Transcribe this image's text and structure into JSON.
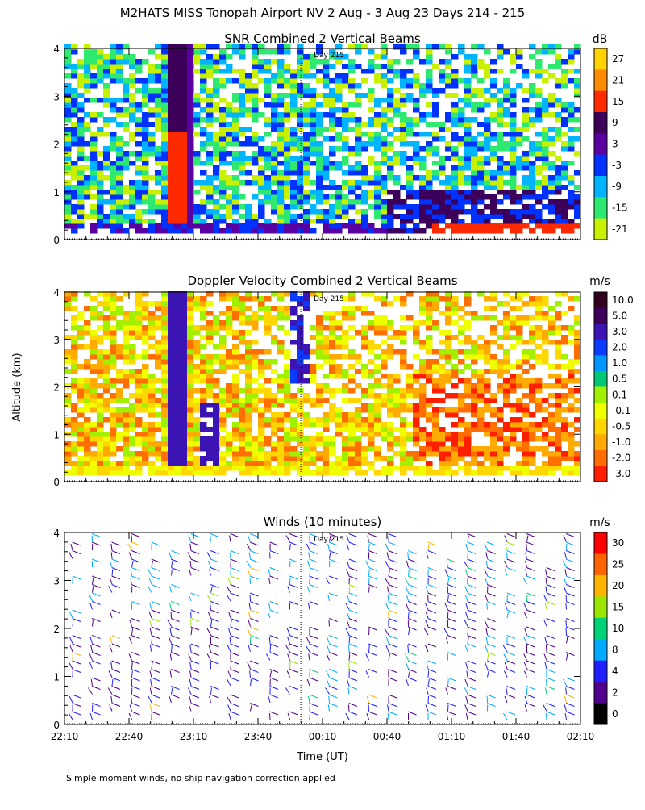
{
  "figure": {
    "title": "M2HATS MISS Tonopah Airport NV   2 Aug -  3 Aug 23 Days 214 - 215",
    "ylabel": "Altitude (km)",
    "xlabel": "Time (UT)",
    "footnote": "Simple moment winds, no ship navigation correction applied",
    "day_marker_label": "Day 215",
    "x_ticks": [
      "22:10",
      "22:40",
      "23:10",
      "23:40",
      "00:10",
      "00:40",
      "01:10",
      "01:40",
      "02:10"
    ]
  },
  "chart_data": [
    {
      "type": "heatmap",
      "title": "SNR Combined 2 Vertical Beams",
      "ylim": [
        0,
        4
      ],
      "y_ticks": [
        "0",
        "1",
        "2",
        "3",
        "4"
      ],
      "x_ticks": [
        "22:10",
        "22:40",
        "23:10",
        "23:40",
        "00:10",
        "00:40",
        "01:10",
        "01:40",
        "02:10"
      ],
      "colorbar": {
        "unit": "dB",
        "labels": [
          "27",
          "21",
          "15",
          "9",
          "3",
          "-3",
          "-9",
          "-15",
          "-21"
        ],
        "colors": [
          "#ffd200",
          "#ff8c00",
          "#ff2a00",
          "#3c005a",
          "#5a00a0",
          "#0032ff",
          "#00b4ff",
          "#2ee870",
          "#c8f000"
        ]
      }
    },
    {
      "type": "heatmap",
      "title": "Doppler Velocity Combined 2 Vertical Beams",
      "ylim": [
        0,
        4
      ],
      "y_ticks": [
        "0",
        "1",
        "2",
        "3",
        "4"
      ],
      "x_ticks": [
        "22:10",
        "22:40",
        "23:10",
        "23:40",
        "00:10",
        "00:40",
        "01:10",
        "01:40",
        "02:10"
      ],
      "colorbar": {
        "unit": "m/s",
        "labels": [
          "10.0",
          "5.0",
          "3.0",
          "2.0",
          "1.0",
          "0.5",
          "0.1",
          "-0.1",
          "-0.5",
          "-1.0",
          "-2.0",
          "-3.0"
        ],
        "colors": [
          "#32001e",
          "#3c005a",
          "#3c14b4",
          "#0a3cff",
          "#0096ff",
          "#00c878",
          "#a0f000",
          "#f0ff00",
          "#ffd700",
          "#ffaa00",
          "#ff6e00",
          "#ff1e00"
        ]
      }
    },
    {
      "type": "wind-barbs",
      "title": "Winds (10 minutes)",
      "ylim": [
        0,
        4
      ],
      "y_ticks": [
        "0",
        "1",
        "2",
        "3",
        "4"
      ],
      "x_ticks": [
        "22:10",
        "22:40",
        "23:10",
        "23:40",
        "00:10",
        "00:40",
        "01:10",
        "01:40",
        "02:10"
      ],
      "colorbar": {
        "unit": "m/s",
        "labels": [
          "30",
          "25",
          "20",
          "15",
          "10",
          "8",
          "4",
          "2",
          "0"
        ],
        "colors": [
          "#ff0000",
          "#ff6400",
          "#ffb400",
          "#9be600",
          "#00d278",
          "#00aaff",
          "#1e1eff",
          "#50008c",
          "#000000"
        ]
      }
    }
  ]
}
